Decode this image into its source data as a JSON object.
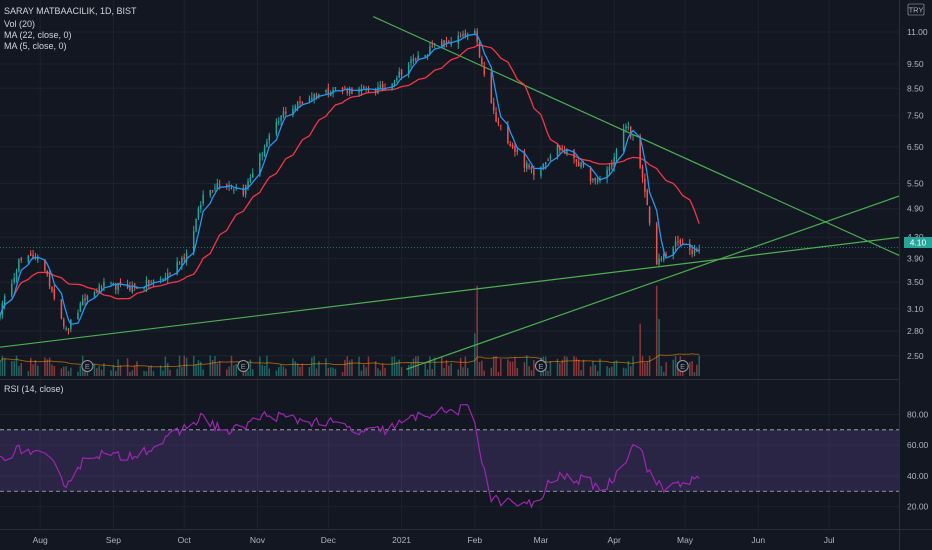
{
  "legend": {
    "title": "SARAY MATBAACILIK, 1D, BIST",
    "vol": "Vol (20)",
    "ma22": "MA (22, close, 0)",
    "ma5": "MA (5, close, 0)",
    "rsi": "RSI (14, close)"
  },
  "currency": "TRY",
  "last_price_label": "4.10",
  "colors": {
    "background": "#131722",
    "up": "#26a69a",
    "down": "#ef5350",
    "ma22": "#f23645",
    "ma5": "#2196f3",
    "trendline": "#4caf50",
    "rsi_line": "#9c27b0",
    "rsi_band": "#7e57c2",
    "earnings": "#9598a1"
  },
  "earnings_marker": "E",
  "chart_data": {
    "type": "candlestick",
    "title": "SARAY MATBAACILIK, 1D, BIST",
    "y_ticks": [
      "11.00",
      "9.50",
      "8.50",
      "7.50",
      "6.50",
      "5.50",
      "4.90",
      "4.30",
      "3.90",
      "3.50",
      "3.10",
      "2.80",
      "2.50"
    ],
    "x_ticks": [
      "Aug",
      "Sep",
      "Oct",
      "Nov",
      "Dec",
      "2021",
      "Feb",
      "Mar",
      "Apr",
      "May",
      "Jun",
      "Jul"
    ],
    "y_scale": "log",
    "ylim": [
      2.3,
      12.5
    ],
    "rsi_ticks": [
      "80.00",
      "60.00",
      "40.00",
      "20.00"
    ],
    "rsi_levels": [
      70,
      30
    ],
    "rsi_ylim": [
      10,
      92
    ],
    "price_keypoints": [
      {
        "date": "2020-07-15",
        "close": 3.05
      },
      {
        "date": "2020-07-23",
        "close": 3.85
      },
      {
        "date": "2020-07-31",
        "close": 3.95
      },
      {
        "date": "2020-08-07",
        "close": 3.3
      },
      {
        "date": "2020-08-12",
        "close": 2.8
      },
      {
        "date": "2020-08-20",
        "close": 3.25
      },
      {
        "date": "2020-08-28",
        "close": 3.45
      },
      {
        "date": "2020-09-10",
        "close": 3.42
      },
      {
        "date": "2020-09-22",
        "close": 3.55
      },
      {
        "date": "2020-10-02",
        "close": 4.0
      },
      {
        "date": "2020-10-09",
        "close": 5.2
      },
      {
        "date": "2020-10-16",
        "close": 5.55
      },
      {
        "date": "2020-10-26",
        "close": 5.3
      },
      {
        "date": "2020-11-04",
        "close": 6.5
      },
      {
        "date": "2020-11-12",
        "close": 7.6
      },
      {
        "date": "2020-11-24",
        "close": 8.2
      },
      {
        "date": "2020-12-04",
        "close": 8.5
      },
      {
        "date": "2020-12-14",
        "close": 8.4
      },
      {
        "date": "2020-12-25",
        "close": 8.5
      },
      {
        "date": "2021-01-05",
        "close": 9.6
      },
      {
        "date": "2021-01-15",
        "close": 10.3
      },
      {
        "date": "2021-01-25",
        "close": 10.7
      },
      {
        "date": "2021-02-01",
        "close": 10.9
      },
      {
        "date": "2021-02-04",
        "close": 9.4
      },
      {
        "date": "2021-02-10",
        "close": 7.3
      },
      {
        "date": "2021-02-22",
        "close": 6.0
      },
      {
        "date": "2021-02-26",
        "close": 5.8
      },
      {
        "date": "2021-03-08",
        "close": 6.5
      },
      {
        "date": "2021-03-15",
        "close": 6.2
      },
      {
        "date": "2021-03-24",
        "close": 5.5
      },
      {
        "date": "2021-03-31",
        "close": 6.0
      },
      {
        "date": "2021-04-06",
        "close": 7.2
      },
      {
        "date": "2021-04-09",
        "close": 6.8
      },
      {
        "date": "2021-04-14",
        "close": 5.3
      },
      {
        "date": "2021-04-19",
        "close": 3.8
      },
      {
        "date": "2021-04-22",
        "close": 3.95
      },
      {
        "date": "2021-04-28",
        "close": 4.2
      },
      {
        "date": "2021-05-03",
        "close": 4.0
      },
      {
        "date": "2021-05-07",
        "close": 4.1
      }
    ],
    "volume_spikes": [
      {
        "date": "2021-02-01",
        "level": 0.45
      },
      {
        "date": "2021-02-02",
        "level": 0.95
      },
      {
        "date": "2021-04-19",
        "level": 0.95
      },
      {
        "date": "2021-04-20",
        "level": 0.6
      },
      {
        "date": "2021-04-12",
        "level": 0.55
      }
    ],
    "trendlines": [
      {
        "from": {
          "date": "2020-07-15",
          "price": 2.6
        },
        "to": {
          "date": "2021-07-31",
          "price": 4.3
        }
      },
      {
        "from": {
          "date": "2020-12-20",
          "price": 11.8
        },
        "to": {
          "date": "2021-07-31",
          "price": 3.95
        }
      },
      {
        "from": {
          "date": "2021-01-03",
          "price": 2.35
        },
        "to": {
          "date": "2021-07-31",
          "price": 5.2
        }
      }
    ],
    "earnings_dates": [
      "2020-08-21",
      "2020-10-26",
      "2021-03-01",
      "2021-04-30"
    ],
    "rsi_keypoints": [
      {
        "date": "2020-07-15",
        "value": 52
      },
      {
        "date": "2020-07-25",
        "value": 58
      },
      {
        "date": "2020-08-05",
        "value": 50
      },
      {
        "date": "2020-08-12",
        "value": 35
      },
      {
        "date": "2020-08-22",
        "value": 55
      },
      {
        "date": "2020-09-05",
        "value": 52
      },
      {
        "date": "2020-09-20",
        "value": 60
      },
      {
        "date": "2020-10-08",
        "value": 78
      },
      {
        "date": "2020-10-20",
        "value": 68
      },
      {
        "date": "2020-11-05",
        "value": 80
      },
      {
        "date": "2020-11-20",
        "value": 76
      },
      {
        "date": "2020-12-05",
        "value": 74
      },
      {
        "date": "2020-12-14",
        "value": 68
      },
      {
        "date": "2020-12-25",
        "value": 70
      },
      {
        "date": "2021-01-10",
        "value": 80
      },
      {
        "date": "2021-01-31",
        "value": 84
      },
      {
        "date": "2021-02-03",
        "value": 58
      },
      {
        "date": "2021-02-08",
        "value": 25
      },
      {
        "date": "2021-02-22",
        "value": 21
      },
      {
        "date": "2021-02-28",
        "value": 22
      },
      {
        "date": "2021-03-06",
        "value": 40
      },
      {
        "date": "2021-03-20",
        "value": 37
      },
      {
        "date": "2021-03-28",
        "value": 31
      },
      {
        "date": "2021-04-05",
        "value": 48
      },
      {
        "date": "2021-04-10",
        "value": 66
      },
      {
        "date": "2021-04-17",
        "value": 38
      },
      {
        "date": "2021-04-22",
        "value": 31
      },
      {
        "date": "2021-04-28",
        "value": 36
      },
      {
        "date": "2021-05-07",
        "value": 37
      }
    ]
  }
}
